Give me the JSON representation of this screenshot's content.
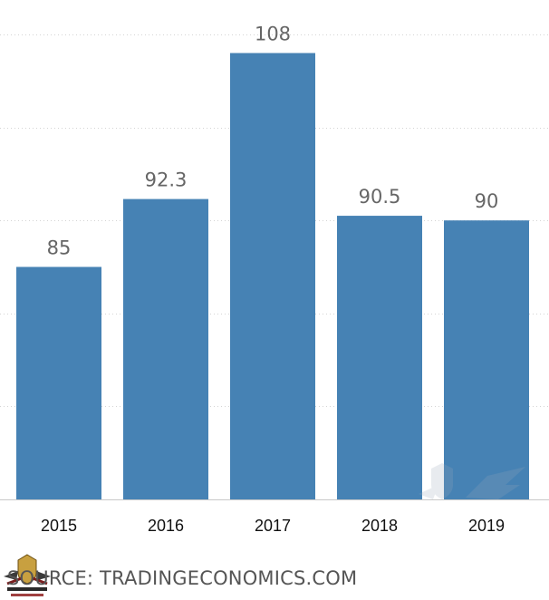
{
  "chart_data": {
    "type": "bar",
    "categories": [
      "2015",
      "2016",
      "2017",
      "2018",
      "2019"
    ],
    "values": [
      85,
      92.3,
      108,
      90.5,
      90
    ],
    "value_labels": [
      "85",
      "92.3",
      "108",
      "90.5",
      "90"
    ],
    "title": "",
    "xlabel": "",
    "ylabel": "",
    "ylim": [
      60,
      110
    ],
    "grid": true,
    "legend": "none",
    "bar_color": "#4682b4"
  },
  "footer": {
    "source": "SOURCE: TRADINGECONOMICS.COM"
  },
  "icons": {
    "logo": "arab-defense-forum-logo-icon",
    "watermark": "forum-watermark-icon"
  },
  "colors": {
    "bar": "#4682b4",
    "value_label": "#666666",
    "tick_label": "#111111"
  }
}
